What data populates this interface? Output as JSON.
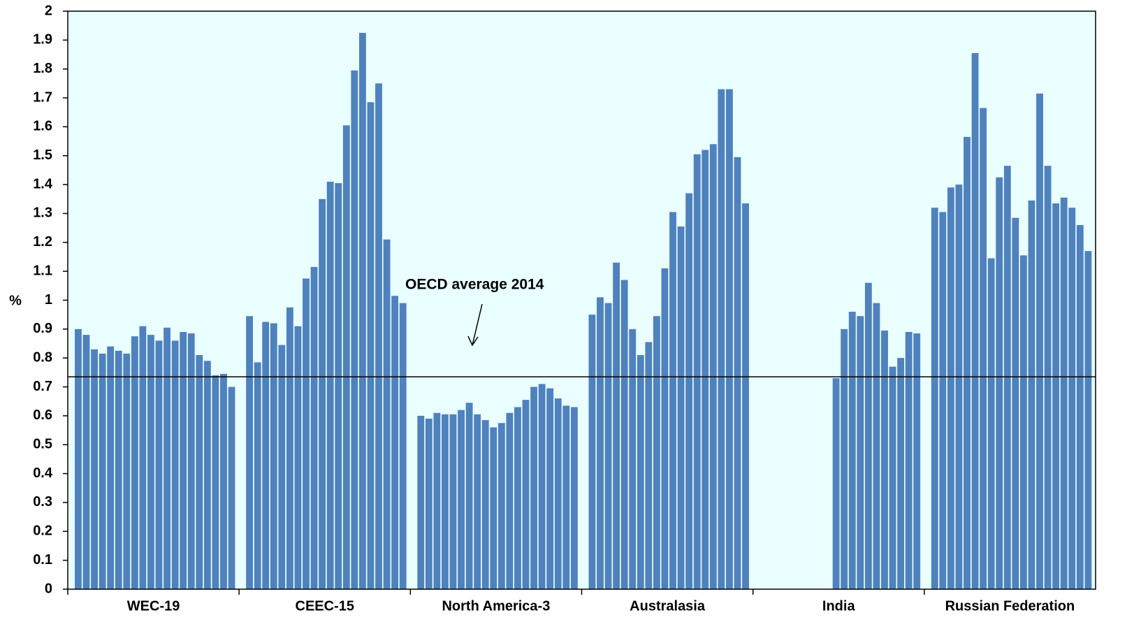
{
  "chart_data": {
    "type": "bar",
    "ylabel": "%",
    "ylim": [
      0,
      2
    ],
    "yticks": [
      0,
      0.1,
      0.2,
      0.3,
      0.4,
      0.5,
      0.6,
      0.7,
      0.8,
      0.9,
      1,
      1.1,
      1.2,
      1.3,
      1.4,
      1.5,
      1.6,
      1.7,
      1.8,
      1.9,
      2
    ],
    "color": "#4f81bd",
    "groups": [
      {
        "name": "WEC-19",
        "values": [
          0.9,
          0.88,
          0.83,
          0.815,
          0.84,
          0.825,
          0.815,
          0.875,
          0.91,
          0.88,
          0.86,
          0.905,
          0.86,
          0.89,
          0.885,
          0.81,
          0.79,
          0.74,
          0.745,
          0.7
        ]
      },
      {
        "name": "CEEC-15",
        "values": [
          0.945,
          0.785,
          0.925,
          0.92,
          0.845,
          0.975,
          0.91,
          1.075,
          1.115,
          1.35,
          1.41,
          1.405,
          1.605,
          1.795,
          1.925,
          1.685,
          1.75,
          1.21,
          1.015,
          0.99
        ]
      },
      {
        "name": "North America-3",
        "values": [
          0.6,
          0.59,
          0.61,
          0.605,
          0.605,
          0.62,
          0.645,
          0.605,
          0.585,
          0.56,
          0.575,
          0.61,
          0.63,
          0.655,
          0.7,
          0.71,
          0.695,
          0.66,
          0.635,
          0.63
        ]
      },
      {
        "name": "Australasia",
        "values": [
          0.95,
          1.01,
          0.99,
          1.13,
          1.07,
          0.9,
          0.81,
          0.855,
          0.945,
          1.11,
          1.305,
          1.255,
          1.37,
          1.505,
          1.52,
          1.54,
          1.73,
          1.73,
          1.495,
          1.335
        ]
      },
      {
        "name": "India",
        "values": [
          null,
          null,
          null,
          null,
          null,
          null,
          null,
          null,
          null,
          0.73,
          0.9,
          0.96,
          0.945,
          1.06,
          0.99,
          0.895,
          0.77,
          0.8,
          0.89,
          0.885
        ]
      },
      {
        "name": "Russian Federation",
        "values": [
          1.32,
          1.305,
          1.39,
          1.4,
          1.565,
          1.855,
          1.665,
          1.145,
          1.425,
          1.465,
          1.285,
          1.155,
          1.345,
          1.715,
          1.465,
          1.335,
          1.355,
          1.32,
          1.26,
          1.17
        ]
      }
    ],
    "reference_line": {
      "label": "OECD average 2014",
      "value": 0.735
    }
  }
}
